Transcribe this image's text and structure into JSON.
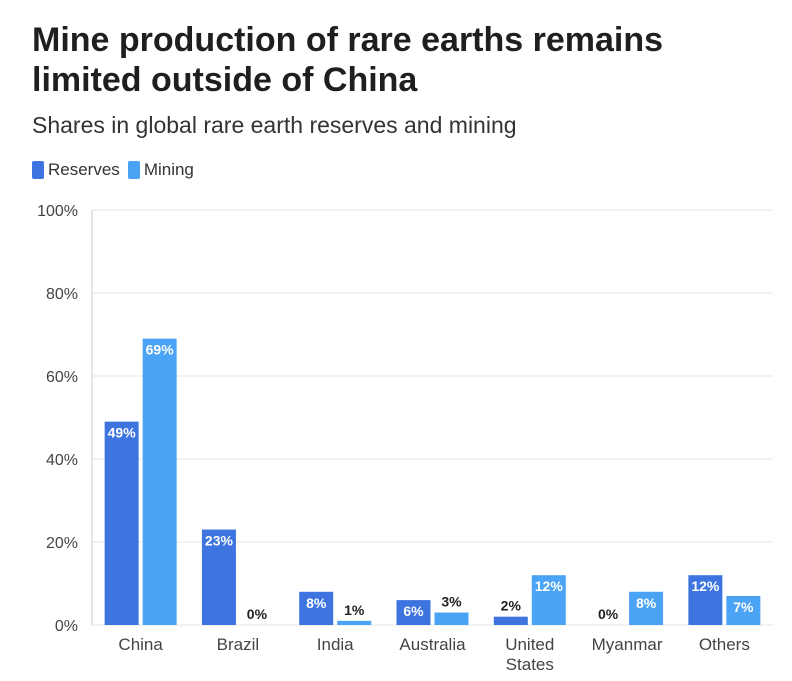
{
  "header": {
    "title": "Mine production of rare earths remains limited outside of China",
    "subtitle": "Shares in global rare earth reserves and mining"
  },
  "colors": {
    "reserves": "#3d74e0",
    "mining": "#4aa3f5",
    "grid": "#e6e6e6",
    "axis": "#cccccc"
  },
  "legend": {
    "items": [
      {
        "label": "Reserves",
        "color": "#3d74e0"
      },
      {
        "label": "Mining",
        "color": "#4aa3f5"
      }
    ]
  },
  "chart_data": {
    "type": "bar",
    "title": "Mine production of rare earths remains limited outside of China",
    "subtitle": "Shares in global rare earth reserves and mining",
    "categories": [
      [
        "China"
      ],
      [
        "Brazil"
      ],
      [
        "India"
      ],
      [
        "Australia"
      ],
      [
        "United",
        "States"
      ],
      [
        "Myanmar"
      ],
      [
        "Others"
      ]
    ],
    "series": [
      {
        "name": "Reserves",
        "values": [
          49,
          23,
          8,
          6,
          2,
          0,
          12
        ],
        "labels": [
          "49%",
          "23%",
          "8%",
          "6%",
          "2%",
          "0%",
          "12%"
        ]
      },
      {
        "name": "Mining",
        "values": [
          69,
          0,
          1,
          3,
          12,
          8,
          7
        ],
        "labels": [
          "69%",
          "0%",
          "1%",
          "3%",
          "12%",
          "8%",
          "7%"
        ]
      }
    ],
    "yticks": [
      0,
      20,
      40,
      60,
      80,
      100
    ],
    "ytick_labels": [
      "0%",
      "20%",
      "40%",
      "60%",
      "80%",
      "100%"
    ],
    "ylim": [
      0,
      100
    ],
    "xlabel": "",
    "ylabel": "",
    "grid": true,
    "legend_position": "top-left"
  }
}
